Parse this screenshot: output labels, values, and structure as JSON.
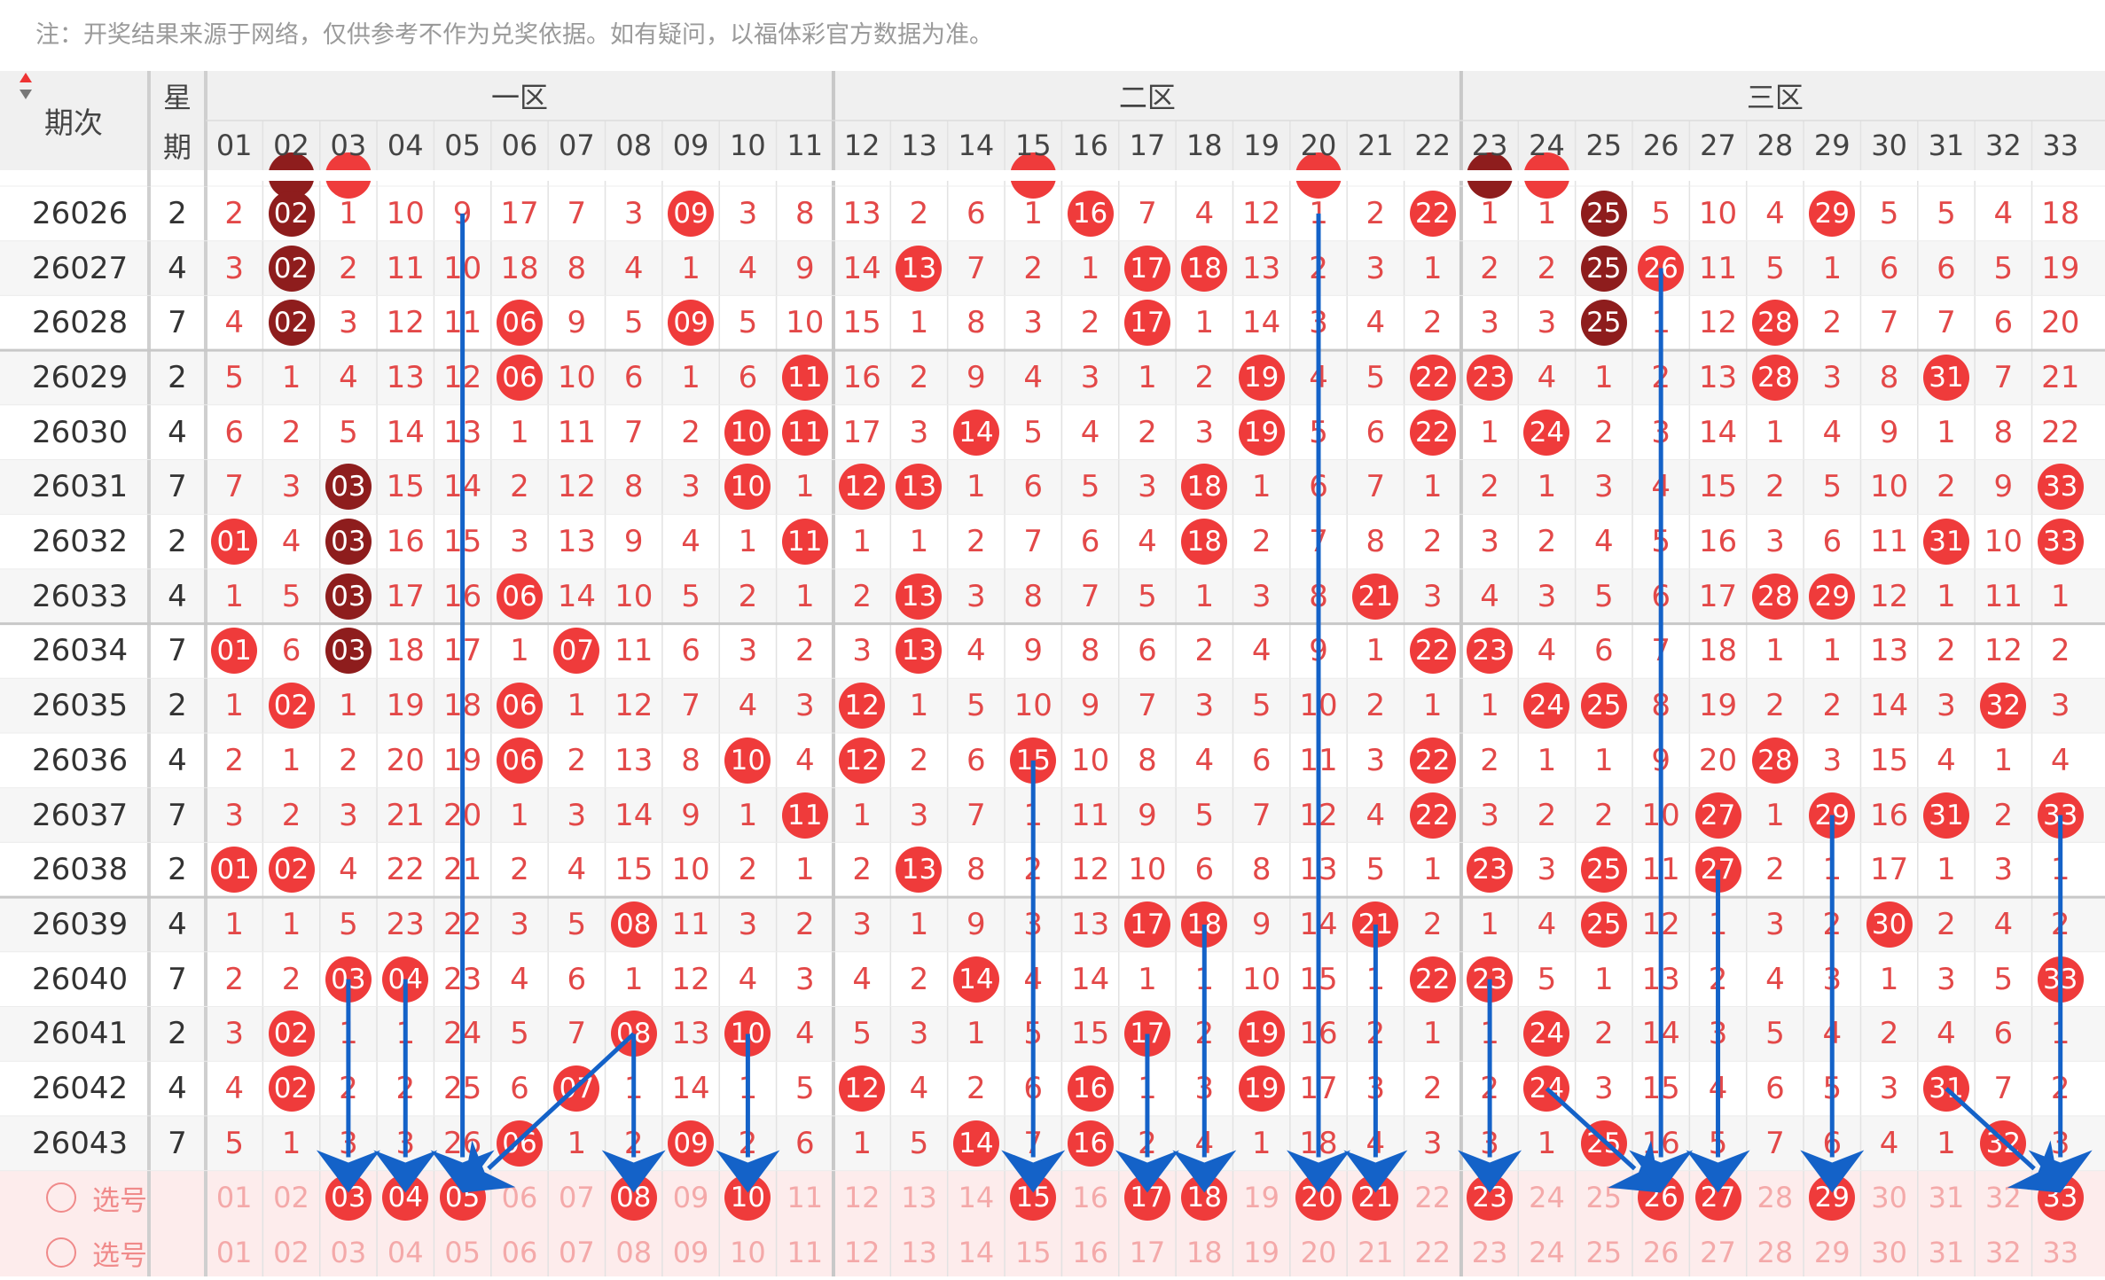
{
  "note": "注：开奖结果来源于网络，仅供参考不作为兑奖依据。如有疑问，以福体彩官方数据为准。",
  "header": {
    "issue_label": "期次",
    "sort_icon": "sort-updown-icon",
    "week_label_top": "星",
    "week_label_bottom": "期",
    "zones": [
      "一区",
      "二区",
      "三区"
    ]
  },
  "columns": [
    "01",
    "02",
    "03",
    "04",
    "05",
    "06",
    "07",
    "08",
    "09",
    "10",
    "11",
    "12",
    "13",
    "14",
    "15",
    "16",
    "17",
    "18",
    "19",
    "20",
    "21",
    "22",
    "23",
    "24",
    "25",
    "26",
    "27",
    "28",
    "29",
    "30",
    "31",
    "32",
    "33"
  ],
  "colors": {
    "ball_red": "#ef3b3b",
    "ball_dark": "#8e1d1d",
    "omit_text": "#e34848",
    "arrow": "#1462c8",
    "pick_bg": "#fdecec"
  },
  "rows": [
    {
      "issue": "26026",
      "week": "2",
      "cells": [
        "2",
        "02",
        "1",
        "10",
        "9",
        "17",
        "7",
        "3",
        "09",
        "3",
        "8",
        "13",
        "2",
        "6",
        "1",
        "16",
        "7",
        "4",
        "12",
        "1",
        "2",
        "22",
        "1",
        "1",
        "25",
        "5",
        "10",
        "4",
        "29",
        "5",
        "5",
        "4",
        "18"
      ]
    },
    {
      "issue": "26027",
      "week": "4",
      "cells": [
        "3",
        "02",
        "2",
        "11",
        "10",
        "18",
        "8",
        "4",
        "1",
        "4",
        "9",
        "14",
        "13",
        "7",
        "2",
        "1",
        "17",
        "18",
        "13",
        "2",
        "3",
        "1",
        "2",
        "2",
        "25",
        "26",
        "11",
        "5",
        "1",
        "6",
        "6",
        "5",
        "19"
      ]
    },
    {
      "issue": "26028",
      "week": "7",
      "cells": [
        "4",
        "02",
        "3",
        "12",
        "11",
        "06",
        "9",
        "5",
        "09",
        "5",
        "10",
        "15",
        "1",
        "8",
        "3",
        "2",
        "17",
        "1",
        "14",
        "3",
        "4",
        "2",
        "3",
        "3",
        "25",
        "1",
        "12",
        "28",
        "2",
        "7",
        "7",
        "6",
        "20"
      ]
    },
    {
      "issue": "26029",
      "week": "2",
      "cells": [
        "5",
        "1",
        "4",
        "13",
        "12",
        "06",
        "10",
        "6",
        "1",
        "6",
        "11",
        "16",
        "2",
        "9",
        "4",
        "3",
        "1",
        "2",
        "19",
        "4",
        "5",
        "22",
        "23",
        "4",
        "1",
        "2",
        "13",
        "28",
        "3",
        "8",
        "31",
        "7",
        "21"
      ]
    },
    {
      "issue": "26030",
      "week": "4",
      "cells": [
        "6",
        "2",
        "5",
        "14",
        "13",
        "1",
        "11",
        "7",
        "2",
        "10",
        "11",
        "17",
        "3",
        "14",
        "5",
        "4",
        "2",
        "3",
        "19",
        "5",
        "6",
        "22",
        "1",
        "24",
        "2",
        "3",
        "14",
        "1",
        "4",
        "9",
        "1",
        "8",
        "22"
      ]
    },
    {
      "issue": "26031",
      "week": "7",
      "cells": [
        "7",
        "3",
        "03",
        "15",
        "14",
        "2",
        "12",
        "8",
        "3",
        "10",
        "1",
        "12",
        "13",
        "1",
        "6",
        "5",
        "3",
        "18",
        "1",
        "6",
        "7",
        "1",
        "2",
        "1",
        "3",
        "4",
        "15",
        "2",
        "5",
        "10",
        "2",
        "9",
        "33"
      ]
    },
    {
      "issue": "26032",
      "week": "2",
      "cells": [
        "01",
        "4",
        "03",
        "16",
        "15",
        "3",
        "13",
        "9",
        "4",
        "1",
        "11",
        "1",
        "1",
        "2",
        "7",
        "6",
        "4",
        "18",
        "2",
        "7",
        "8",
        "2",
        "3",
        "2",
        "4",
        "5",
        "16",
        "3",
        "6",
        "11",
        "31",
        "10",
        "33"
      ]
    },
    {
      "issue": "26033",
      "week": "4",
      "cells": [
        "1",
        "5",
        "03",
        "17",
        "16",
        "06",
        "14",
        "10",
        "5",
        "2",
        "1",
        "2",
        "13",
        "3",
        "8",
        "7",
        "5",
        "1",
        "3",
        "8",
        "21",
        "3",
        "4",
        "3",
        "5",
        "6",
        "17",
        "28",
        "29",
        "12",
        "1",
        "11",
        "1"
      ]
    },
    {
      "issue": "26034",
      "week": "7",
      "cells": [
        "01",
        "6",
        "03",
        "18",
        "17",
        "1",
        "07",
        "11",
        "6",
        "3",
        "2",
        "3",
        "13",
        "4",
        "9",
        "8",
        "6",
        "2",
        "4",
        "9",
        "1",
        "22",
        "23",
        "4",
        "6",
        "7",
        "18",
        "1",
        "1",
        "13",
        "2",
        "12",
        "2"
      ]
    },
    {
      "issue": "26035",
      "week": "2",
      "cells": [
        "1",
        "02",
        "1",
        "19",
        "18",
        "06",
        "1",
        "12",
        "7",
        "4",
        "3",
        "12",
        "1",
        "5",
        "10",
        "9",
        "7",
        "3",
        "5",
        "10",
        "2",
        "1",
        "1",
        "24",
        "25",
        "8",
        "19",
        "2",
        "2",
        "14",
        "3",
        "32",
        "3"
      ]
    },
    {
      "issue": "26036",
      "week": "4",
      "cells": [
        "2",
        "1",
        "2",
        "20",
        "19",
        "06",
        "2",
        "13",
        "8",
        "10",
        "4",
        "12",
        "2",
        "6",
        "15",
        "10",
        "8",
        "4",
        "6",
        "11",
        "3",
        "22",
        "2",
        "1",
        "1",
        "9",
        "20",
        "28",
        "3",
        "15",
        "4",
        "1",
        "4"
      ]
    },
    {
      "issue": "26037",
      "week": "7",
      "cells": [
        "3",
        "2",
        "3",
        "21",
        "20",
        "1",
        "3",
        "14",
        "9",
        "1",
        "11",
        "1",
        "3",
        "7",
        "1",
        "11",
        "9",
        "5",
        "7",
        "12",
        "4",
        "22",
        "3",
        "2",
        "2",
        "10",
        "27",
        "1",
        "29",
        "16",
        "31",
        "2",
        "33"
      ]
    },
    {
      "issue": "26038",
      "week": "2",
      "cells": [
        "01",
        "02",
        "4",
        "22",
        "21",
        "2",
        "4",
        "15",
        "10",
        "2",
        "1",
        "2",
        "13",
        "8",
        "2",
        "12",
        "10",
        "6",
        "8",
        "13",
        "5",
        "1",
        "23",
        "3",
        "25",
        "11",
        "27",
        "2",
        "1",
        "17",
        "1",
        "3",
        "1"
      ]
    },
    {
      "issue": "26039",
      "week": "4",
      "cells": [
        "1",
        "1",
        "5",
        "23",
        "22",
        "3",
        "5",
        "08",
        "11",
        "3",
        "2",
        "3",
        "1",
        "9",
        "3",
        "13",
        "17",
        "18",
        "9",
        "14",
        "21",
        "2",
        "1",
        "4",
        "25",
        "12",
        "1",
        "3",
        "2",
        "30",
        "2",
        "4",
        "2"
      ]
    },
    {
      "issue": "26040",
      "week": "7",
      "cells": [
        "2",
        "2",
        "03",
        "04",
        "23",
        "4",
        "6",
        "1",
        "12",
        "4",
        "3",
        "4",
        "2",
        "14",
        "4",
        "14",
        "1",
        "1",
        "10",
        "15",
        "1",
        "22",
        "23",
        "5",
        "1",
        "13",
        "2",
        "4",
        "3",
        "1",
        "3",
        "5",
        "33"
      ]
    },
    {
      "issue": "26041",
      "week": "2",
      "cells": [
        "3",
        "02",
        "1",
        "1",
        "24",
        "5",
        "7",
        "08",
        "13",
        "10",
        "4",
        "5",
        "3",
        "1",
        "5",
        "15",
        "17",
        "2",
        "19",
        "16",
        "2",
        "1",
        "1",
        "24",
        "2",
        "14",
        "3",
        "5",
        "4",
        "2",
        "4",
        "6",
        "1"
      ]
    },
    {
      "issue": "26042",
      "week": "4",
      "cells": [
        "4",
        "02",
        "2",
        "2",
        "25",
        "6",
        "07",
        "1",
        "14",
        "1",
        "5",
        "12",
        "4",
        "2",
        "6",
        "16",
        "1",
        "3",
        "19",
        "17",
        "3",
        "2",
        "2",
        "24",
        "3",
        "15",
        "4",
        "6",
        "5",
        "3",
        "31",
        "7",
        "2"
      ]
    },
    {
      "issue": "26043",
      "week": "7",
      "cells": [
        "5",
        "1",
        "3",
        "3",
        "26",
        "06",
        "1",
        "2",
        "09",
        "2",
        "6",
        "1",
        "5",
        "14",
        "7",
        "16",
        "2",
        "4",
        "1",
        "18",
        "4",
        "3",
        "3",
        "1",
        "25",
        "16",
        "5",
        "7",
        "6",
        "4",
        "1",
        "32",
        "3"
      ]
    }
  ],
  "dark_balls": {
    "02": [
      "26026",
      "26027",
      "26028"
    ],
    "25": [
      "26026",
      "26027",
      "26028"
    ],
    "03": [
      "26031",
      "26032",
      "26033",
      "26034"
    ]
  },
  "pick_rows": [
    {
      "label": "选号",
      "selected": [
        "03",
        "04",
        "05",
        "08",
        "10",
        "15",
        "17",
        "18",
        "20",
        "21",
        "23",
        "26",
        "27",
        "29",
        "33"
      ]
    },
    {
      "label": "选号",
      "selected": []
    }
  ],
  "arrows": [
    {
      "from": {
        "issue": "26040",
        "col": "03"
      },
      "to": {
        "pick": 0,
        "col": "03"
      }
    },
    {
      "from": {
        "issue": "26040",
        "col": "04"
      },
      "to": {
        "pick": 0,
        "col": "04"
      }
    },
    {
      "from": {
        "issue": "26026",
        "col": "05"
      },
      "to": {
        "pick": 0,
        "col": "05"
      }
    },
    {
      "from": {
        "issue": "26041",
        "col": "08"
      },
      "to": {
        "pick": 0,
        "col": "05"
      }
    },
    {
      "from": {
        "issue": "26041",
        "col": "08"
      },
      "to": {
        "pick": 0,
        "col": "08"
      }
    },
    {
      "from": {
        "issue": "26041",
        "col": "10"
      },
      "to": {
        "pick": 0,
        "col": "10"
      }
    },
    {
      "from": {
        "issue": "26036",
        "col": "15"
      },
      "to": {
        "pick": 0,
        "col": "15"
      }
    },
    {
      "from": {
        "issue": "26041",
        "col": "17"
      },
      "to": {
        "pick": 0,
        "col": "17"
      }
    },
    {
      "from": {
        "issue": "26039",
        "col": "18"
      },
      "to": {
        "pick": 0,
        "col": "18"
      }
    },
    {
      "from": {
        "issue": "26026",
        "col": "20"
      },
      "to": {
        "pick": 0,
        "col": "20"
      }
    },
    {
      "from": {
        "issue": "26039",
        "col": "21"
      },
      "to": {
        "pick": 0,
        "col": "21"
      }
    },
    {
      "from": {
        "issue": "26040",
        "col": "23"
      },
      "to": {
        "pick": 0,
        "col": "23"
      }
    },
    {
      "from": {
        "issue": "26042",
        "col": "24"
      },
      "to": {
        "pick": 0,
        "col": "26"
      }
    },
    {
      "from": {
        "issue": "26027",
        "col": "26"
      },
      "to": {
        "pick": 0,
        "col": "26"
      }
    },
    {
      "from": {
        "issue": "26038",
        "col": "27"
      },
      "to": {
        "pick": 0,
        "col": "27"
      }
    },
    {
      "from": {
        "issue": "26037",
        "col": "29"
      },
      "to": {
        "pick": 0,
        "col": "29"
      }
    },
    {
      "from": {
        "issue": "26042",
        "col": "31"
      },
      "to": {
        "pick": 0,
        "col": "33"
      }
    },
    {
      "from": {
        "issue": "26037",
        "col": "33"
      },
      "to": {
        "pick": 0,
        "col": "33"
      }
    }
  ]
}
